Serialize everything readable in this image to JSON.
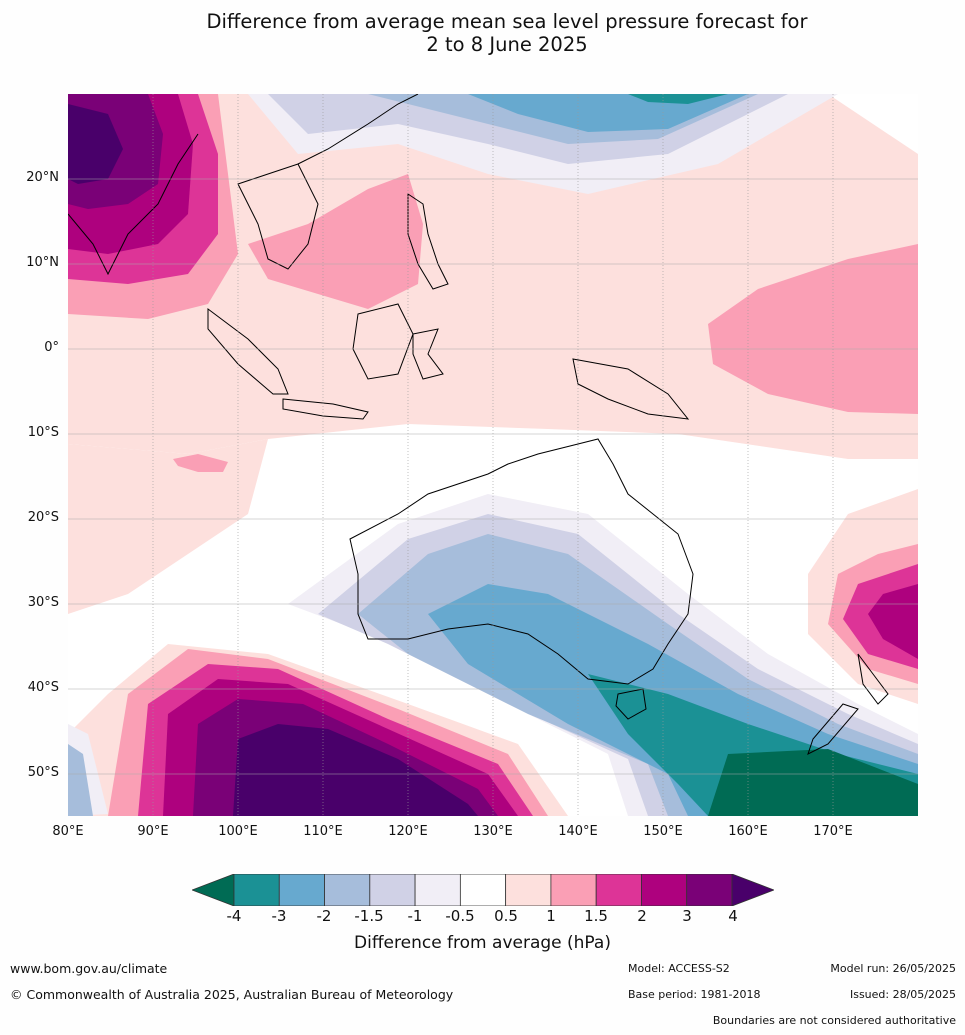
{
  "title_line1": "Difference from average mean sea level pressure forecast for",
  "title_line2": "2 to 8 June 2025",
  "latitude_labels": [
    "20°N",
    "10°N",
    "0°",
    "10°S",
    "20°S",
    "30°S",
    "40°S",
    "50°S"
  ],
  "longitude_labels": [
    "80°E",
    "90°E",
    "100°E",
    "110°E",
    "120°E",
    "130°E",
    "140°E",
    "150°E",
    "160°E",
    "170°E"
  ],
  "colorbar": {
    "tick_labels": [
      "-4",
      "-3",
      "-2",
      "-1.5",
      "-1",
      "-0.5",
      "0.5",
      "1",
      "1.5",
      "2",
      "3",
      "4"
    ],
    "bin_colors": [
      "#006b54",
      "#1b9195",
      "#67a9cf",
      "#a6bddb",
      "#d0d1e6",
      "#f1eef6",
      "#ffffff",
      "#fde0dd",
      "#fa9fb5",
      "#dd3497",
      "#ae017e",
      "#7a0177",
      "#49006a"
    ],
    "title": "Difference from average (hPa)"
  },
  "footer": {
    "website": "www.bom.gov.au/climate",
    "copyright": "© Commonwealth of Australia 2025, Australian Bureau of Meteorology",
    "model": "Model: ACCESS-S2",
    "base_period": "Base period: 1981-2018",
    "model_run": "Model run: 26/05/2025",
    "issued": "Issued: 28/05/2025",
    "disclaimer": "Boundaries are not considered authoritative"
  }
}
